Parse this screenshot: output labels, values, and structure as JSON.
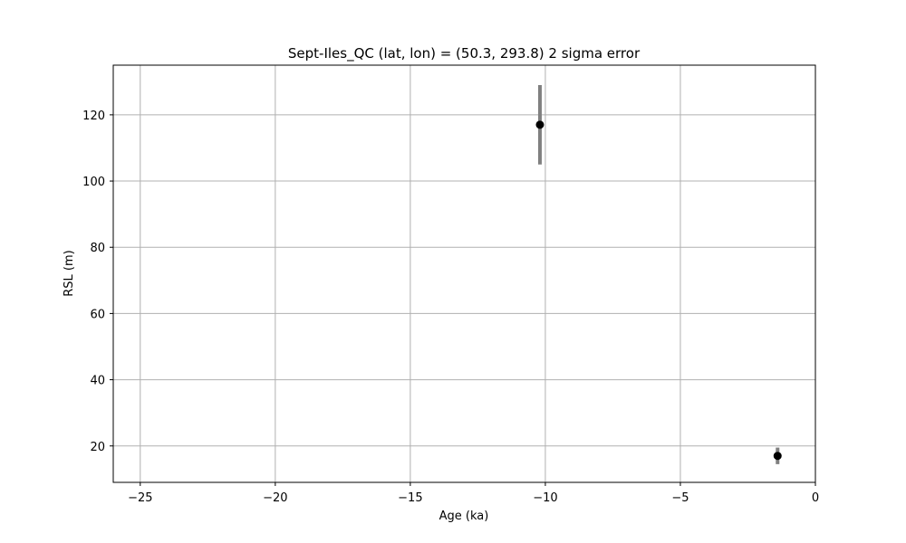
{
  "chart_data": {
    "type": "scatter",
    "title": "Sept-Iles_QC (lat, lon) = (50.3, 293.8)  2 sigma error",
    "xlabel": "Age (ka)",
    "ylabel": "RSL (m)",
    "xlim": [
      -26,
      0
    ],
    "ylim": [
      9,
      135
    ],
    "xticks": [
      -25,
      -20,
      -15,
      -10,
      -5,
      0
    ],
    "xtick_labels": [
      "−25",
      "−20",
      "−15",
      "−10",
      "−5",
      "0"
    ],
    "yticks": [
      20,
      40,
      60,
      80,
      100,
      120
    ],
    "ytick_labels": [
      "20",
      "40",
      "60",
      "80",
      "100",
      "120"
    ],
    "grid": true,
    "series": [
      {
        "points": [
          {
            "x": -10.2,
            "y": 117,
            "err_low": 12,
            "err_high": 12
          },
          {
            "x": -1.4,
            "y": 17,
            "err_low": 2.5,
            "err_high": 2.5
          }
        ],
        "marker_color": "#000000",
        "errorbar_color": "#808080"
      }
    ]
  }
}
